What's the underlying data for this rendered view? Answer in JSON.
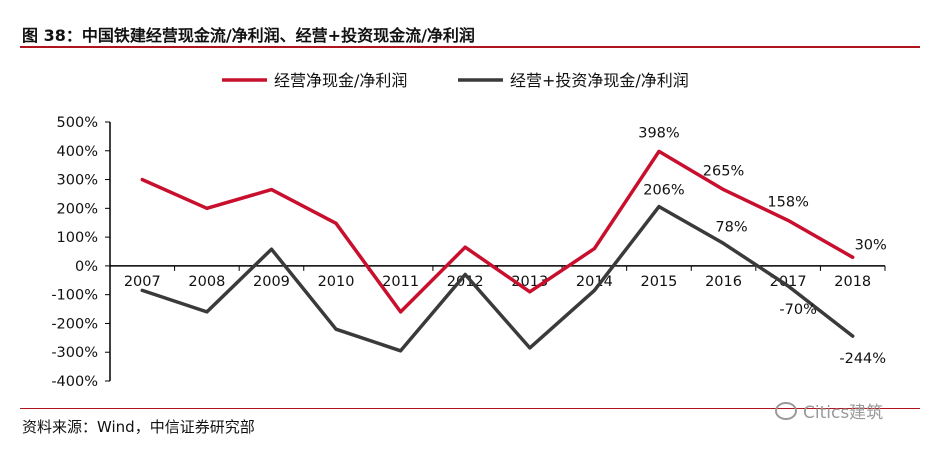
{
  "header": {
    "title": "图 38：中国铁建经营现金流/净利润、经营+投资现金流/净利润"
  },
  "footer": {
    "source": "资料来源：Wind，中信证券研究部"
  },
  "watermark": {
    "text": "Citics建筑",
    "icon": "wechat-icon"
  },
  "chart_data": {
    "type": "line",
    "categories": [
      "2007",
      "2008",
      "2009",
      "2010",
      "2011",
      "2012",
      "2013",
      "2014",
      "2015",
      "2016",
      "2017",
      "2018"
    ],
    "y_ticks": [
      "500%",
      "400%",
      "300%",
      "200%",
      "100%",
      "0%",
      "-100%",
      "-200%",
      "-300%",
      "-400%"
    ],
    "ylim": [
      -400,
      500
    ],
    "unit": "%",
    "grid": false,
    "legend_position": "top",
    "series": [
      {
        "name": "经营净现金/净利润",
        "color": "#c8102e",
        "values": [
          300,
          200,
          265,
          148,
          -160,
          65,
          -90,
          60,
          398,
          265,
          158,
          30
        ]
      },
      {
        "name": "经营+投资净现金/净利润",
        "color": "#3a3a3a",
        "values": [
          -85,
          -160,
          58,
          -220,
          -295,
          -30,
          -285,
          -85,
          206,
          78,
          -70,
          -244
        ]
      }
    ],
    "annotations": [
      {
        "series": 0,
        "index": 8,
        "text": "398%"
      },
      {
        "series": 0,
        "index": 9,
        "text": "265%"
      },
      {
        "series": 0,
        "index": 10,
        "text": "158%"
      },
      {
        "series": 0,
        "index": 11,
        "text": "30%"
      },
      {
        "series": 1,
        "index": 8,
        "text": "206%"
      },
      {
        "series": 1,
        "index": 9,
        "text": "78%"
      },
      {
        "series": 1,
        "index": 10,
        "text": "-70%"
      },
      {
        "series": 1,
        "index": 11,
        "text": "-244%"
      }
    ]
  }
}
